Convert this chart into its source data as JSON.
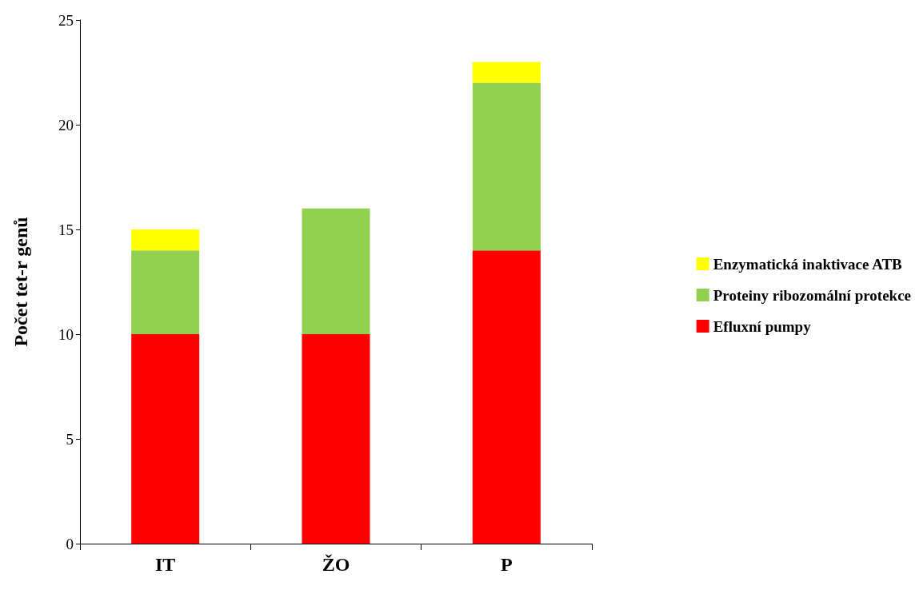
{
  "chart_data": {
    "type": "bar",
    "ylabel": "Počet tet-r genů",
    "categories": [
      "IT",
      "ŽO",
      "P"
    ],
    "stacked": true,
    "legend": "right",
    "grid": false,
    "ylim": [
      0,
      25
    ],
    "yticks": [
      0,
      5,
      10,
      15,
      20,
      25
    ],
    "series": [
      {
        "name": "Efluxní pumpy",
        "color": "#ff0000",
        "values": [
          10,
          10,
          14
        ]
      },
      {
        "name": "Proteiny ribozomální protekce",
        "color": "#92d050",
        "values": [
          4,
          6,
          8
        ]
      },
      {
        "name": "Enzymatická inaktivace ATB",
        "color": "#ffff00",
        "values": [
          1,
          null,
          1
        ]
      }
    ]
  }
}
